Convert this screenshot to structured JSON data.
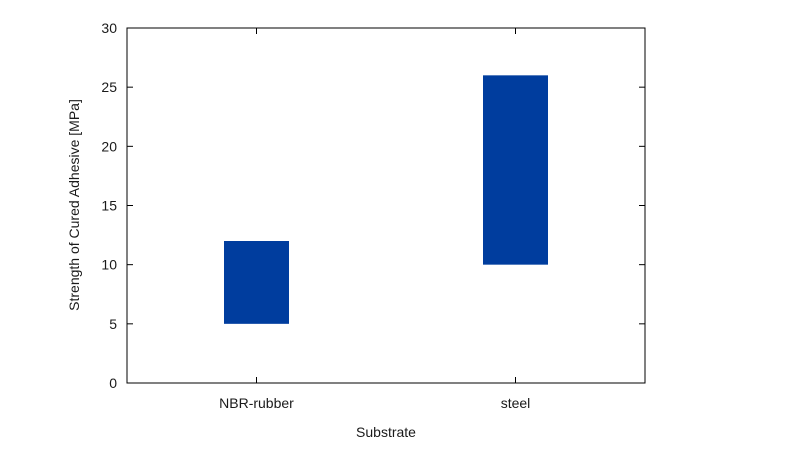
{
  "chart_data": {
    "type": "bar",
    "subtype": "floating-range",
    "title": "",
    "xlabel": "Substrate",
    "ylabel": "Strength of Cured Adhesive [MPa]",
    "categories": [
      "NBR-rubber",
      "steel"
    ],
    "ranges": [
      {
        "category": "NBR-rubber",
        "low": 5,
        "high": 12
      },
      {
        "category": "steel",
        "low": 10,
        "high": 26
      }
    ],
    "ylim": [
      0,
      30
    ],
    "yticks": [
      0,
      5,
      10,
      15,
      20,
      25,
      30
    ],
    "grid": false,
    "legend": "none",
    "bar_color": "#003d9e"
  }
}
